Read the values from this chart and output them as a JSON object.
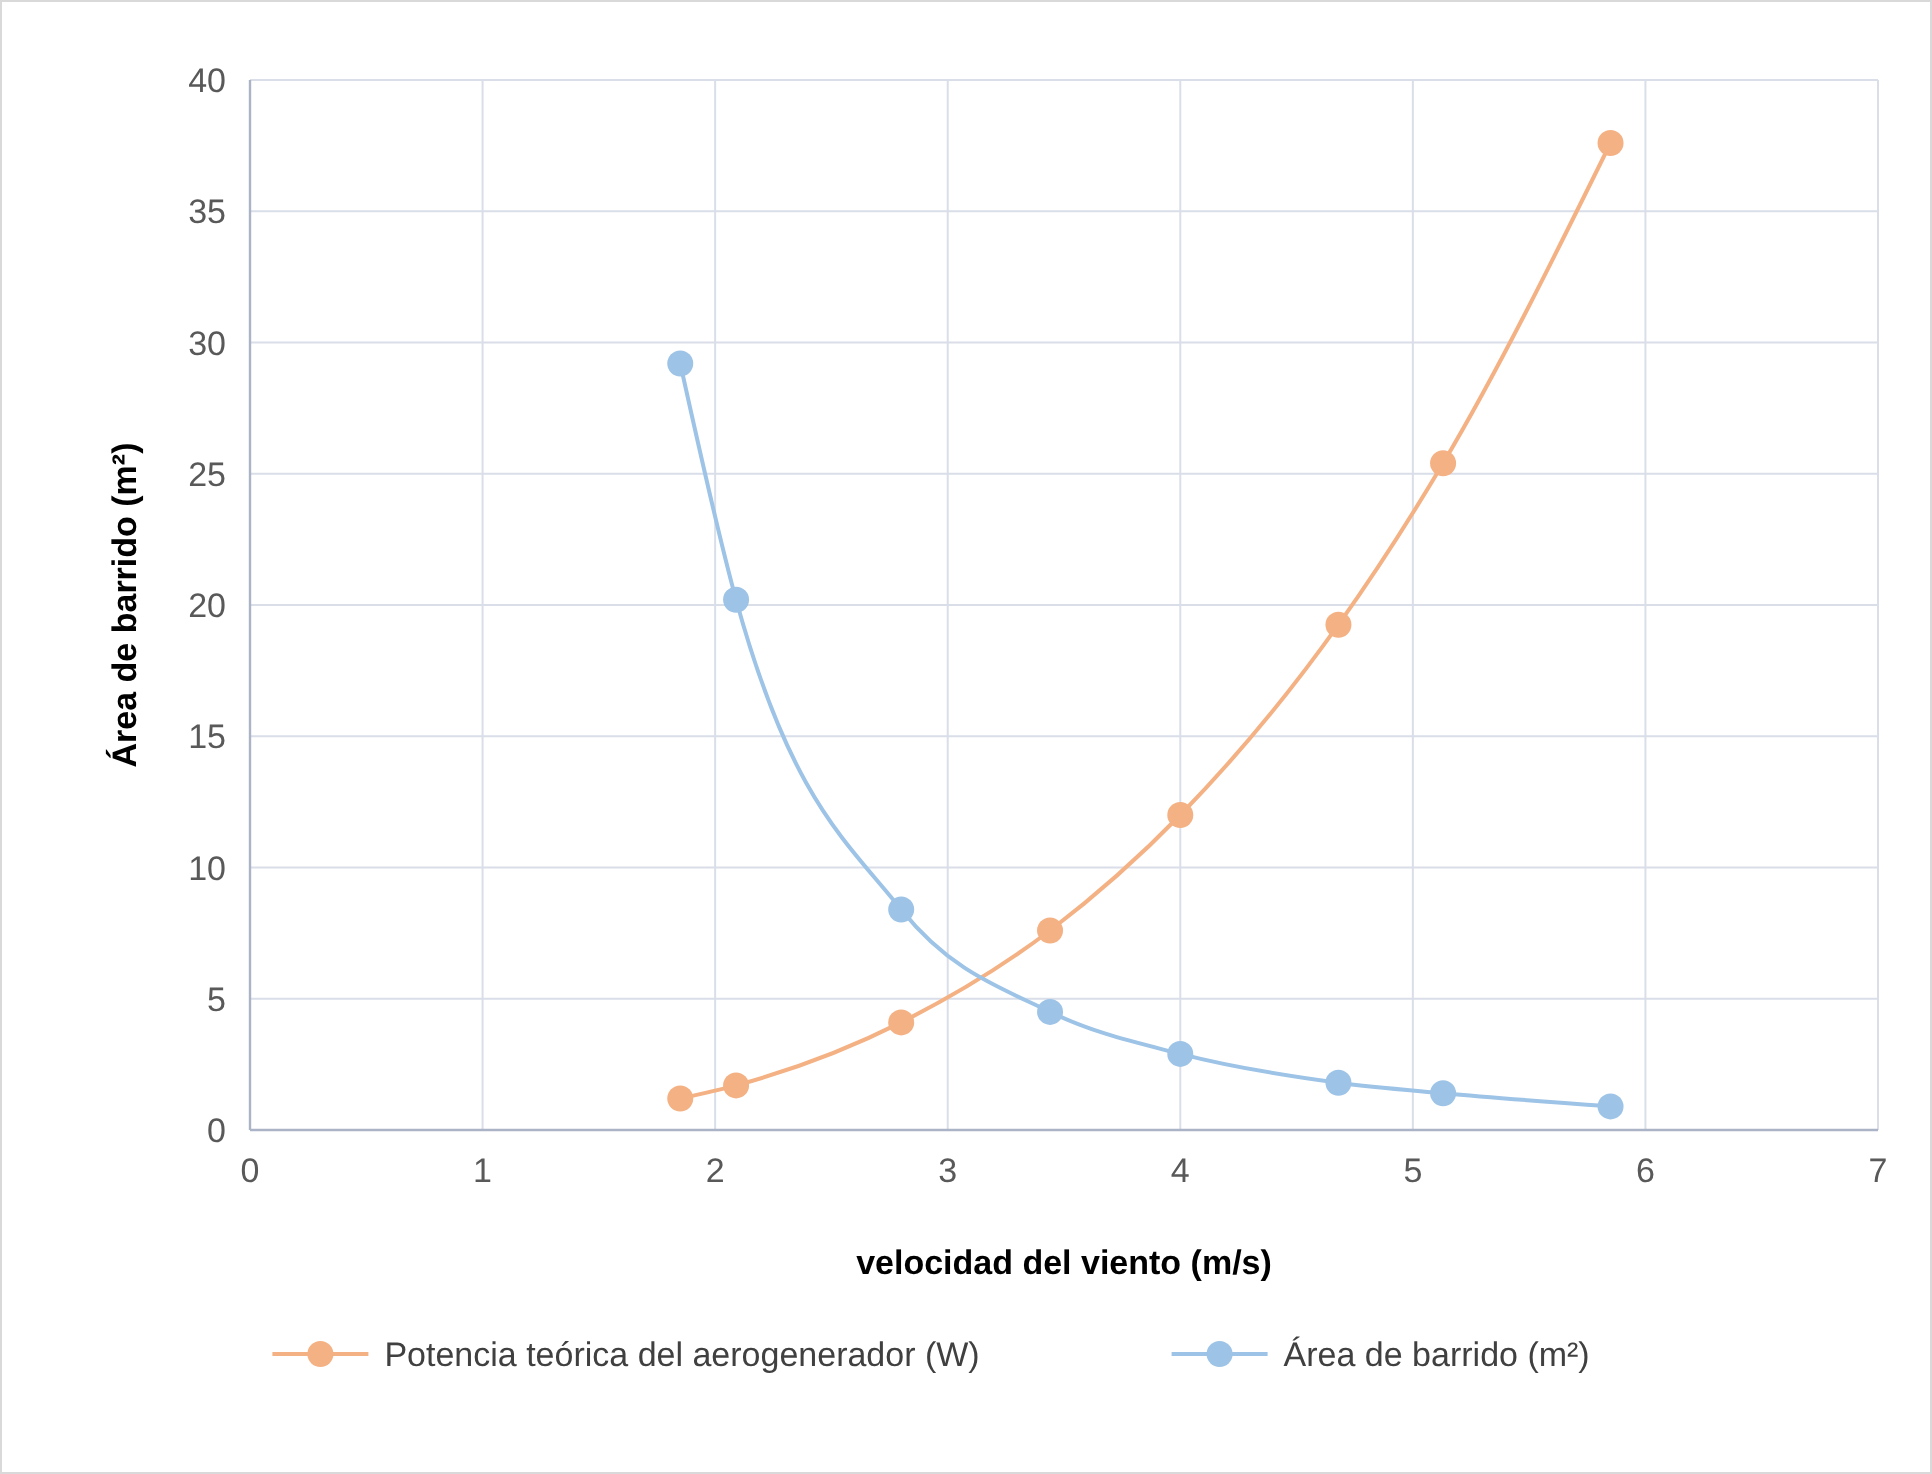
{
  "chart_data": {
    "type": "line",
    "xlabel": "velocidad del viento (m/s)",
    "ylabel": "Área de barrido (m²)",
    "xlim": [
      0,
      7
    ],
    "xticks": [
      0,
      1,
      2,
      3,
      4,
      5,
      6,
      7
    ],
    "ylim": [
      0,
      40
    ],
    "yticks": [
      0,
      5,
      10,
      15,
      20,
      25,
      30,
      35,
      40
    ],
    "grid": true,
    "legend": "bottom",
    "marker": "circle",
    "line_style": "solid",
    "series": [
      {
        "name": "Potencia teórica del aerogenerador (W)",
        "color": "#f4b183",
        "x": [
          1.85,
          2.09,
          2.8,
          3.44,
          4.0,
          4.68,
          5.13,
          5.85
        ],
        "values": [
          1.2,
          1.7,
          4.1,
          7.6,
          12.0,
          19.25,
          25.4,
          37.6
        ]
      },
      {
        "name": "Área de barrido (m²)",
        "color": "#9dc3e6",
        "x": [
          1.85,
          2.09,
          2.8,
          3.44,
          4.0,
          4.68,
          5.13,
          5.85
        ],
        "values": [
          29.2,
          20.2,
          8.4,
          4.5,
          2.9,
          1.8,
          1.4,
          0.9
        ]
      }
    ]
  }
}
